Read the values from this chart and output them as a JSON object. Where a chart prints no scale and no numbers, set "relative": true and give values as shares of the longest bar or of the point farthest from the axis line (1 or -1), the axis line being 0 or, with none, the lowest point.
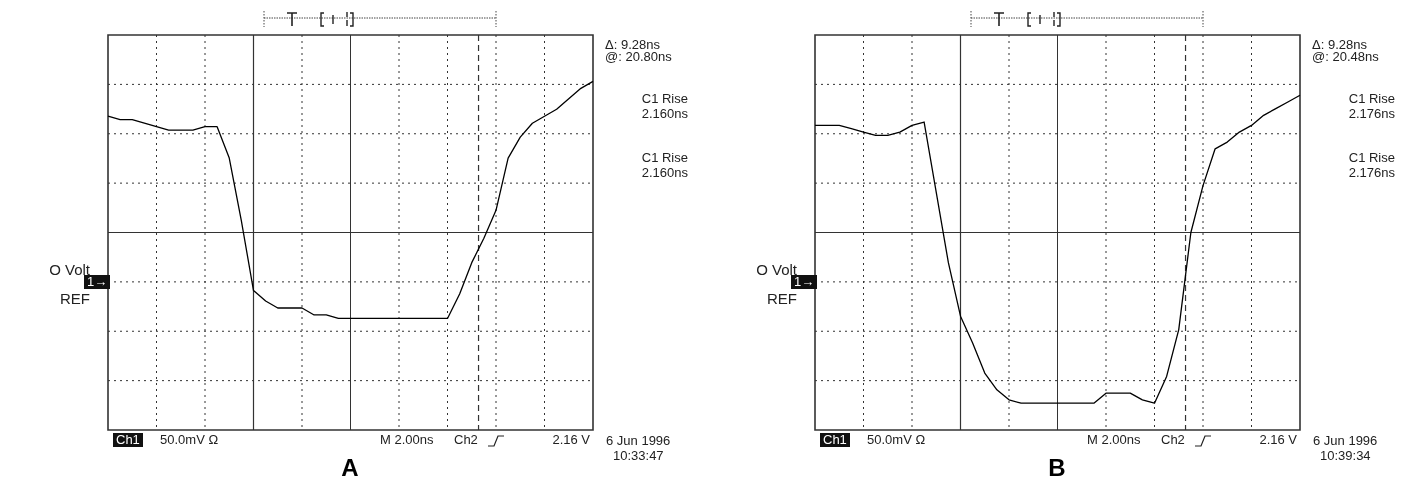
{
  "chart_data": [
    {
      "type": "line",
      "title": "A",
      "relative": true,
      "grid": true,
      "legend": false,
      "marker": "none",
      "line_style": "solid",
      "categories": [
        null,
        null,
        null,
        null,
        null,
        null,
        null,
        null,
        null,
        null,
        null,
        null,
        null,
        null,
        null,
        null,
        null,
        null,
        null,
        null,
        null,
        null,
        null,
        null,
        null,
        null,
        null,
        null,
        null,
        null,
        null,
        null,
        null,
        null,
        null,
        null,
        null,
        null,
        null,
        null,
        null
      ],
      "series": [
        {
          "color": "#000000",
          "values": [
            0.9,
            0.89,
            0.89,
            0.88,
            0.87,
            0.86,
            0.86,
            0.86,
            0.87,
            0.87,
            0.78,
            0.6,
            0.4,
            0.37,
            0.35,
            0.35,
            0.35,
            0.33,
            0.33,
            0.32,
            0.32,
            0.32,
            0.32,
            0.32,
            0.32,
            0.32,
            0.32,
            0.32,
            0.32,
            0.39,
            0.48,
            0.55,
            0.63,
            0.78,
            0.84,
            0.88,
            0.9,
            0.92,
            0.95,
            0.98,
            1
          ]
        }
      ],
      "annotations": [
        "Δ: 9.28ns",
        "@: 20.80ns",
        "C1 Rise",
        "2.160ns",
        "C1 Rise",
        "2.160ns",
        "O Volt",
        "REF",
        "1→",
        "Ch1",
        "50.0mV Ω",
        "M 2.00ns",
        "Ch2",
        "2.16 V",
        "6 Jun 1996",
        "10:33:47"
      ]
    },
    {
      "type": "line",
      "title": "B",
      "relative": true,
      "grid": true,
      "legend": false,
      "marker": "none",
      "line_style": "solid",
      "categories": [
        null,
        null,
        null,
        null,
        null,
        null,
        null,
        null,
        null,
        null,
        null,
        null,
        null,
        null,
        null,
        null,
        null,
        null,
        null,
        null,
        null,
        null,
        null,
        null,
        null,
        null,
        null,
        null,
        null,
        null,
        null,
        null,
        null,
        null,
        null,
        null,
        null,
        null,
        null,
        null,
        null
      ],
      "series": [
        {
          "color": "#000000",
          "values": [
            0.91,
            0.91,
            0.91,
            0.9,
            0.89,
            0.88,
            0.88,
            0.89,
            0.91,
            0.92,
            0.71,
            0.5,
            0.34,
            0.26,
            0.17,
            0.12,
            0.09,
            0.08,
            0.08,
            0.08,
            0.08,
            0.08,
            0.08,
            0.08,
            0.11,
            0.11,
            0.11,
            0.09,
            0.08,
            0.16,
            0.3,
            0.59,
            0.73,
            0.84,
            0.86,
            0.89,
            0.91,
            0.94,
            0.96,
            0.98,
            1
          ]
        }
      ],
      "annotations": [
        "Δ: 9.28ns",
        "@: 20.48ns",
        "C1 Rise",
        "2.176ns",
        "C1 Rise",
        "2.176ns",
        "O Volt",
        "REF",
        "1→",
        "Ch1",
        "50.0mV Ω",
        "M 2.00ns",
        "Ch2",
        "2.16 V",
        "6 Jun 1996",
        "10:39:34"
      ]
    }
  ]
}
